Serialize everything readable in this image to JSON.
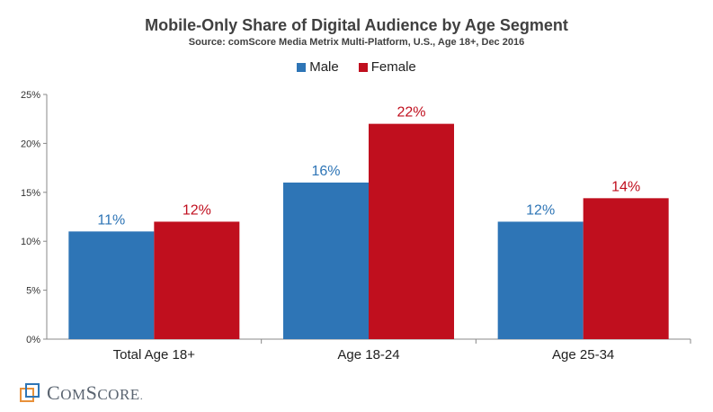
{
  "chart_data": {
    "type": "bar",
    "title": "Mobile-Only Share of Digital Audience by Age Segment",
    "subtitle": "Source: comScore Media Metrix Multi-Platform, U.S., Age 18+, Dec 2016",
    "categories": [
      "Total Age 18+",
      "Age 18-24",
      "Age 25-34"
    ],
    "series": [
      {
        "name": "Male",
        "color": "#2e75b6",
        "values": [
          11,
          16,
          12
        ],
        "labels": [
          "11%",
          "16%",
          "12%"
        ]
      },
      {
        "name": "Female",
        "color": "#c00f1e",
        "values": [
          12,
          22,
          14.4
        ],
        "labels": [
          "12%",
          "22%",
          "14%"
        ]
      }
    ],
    "ylim": [
      0,
      25
    ],
    "yticks": [
      0,
      5,
      10,
      15,
      20,
      25
    ],
    "ytick_labels": [
      "0%",
      "5%",
      "10%",
      "15%",
      "20%",
      "25%"
    ],
    "grid": false,
    "legend_position": "top-center"
  },
  "brand": {
    "name": "COMSCORE",
    "display": "comScore"
  }
}
